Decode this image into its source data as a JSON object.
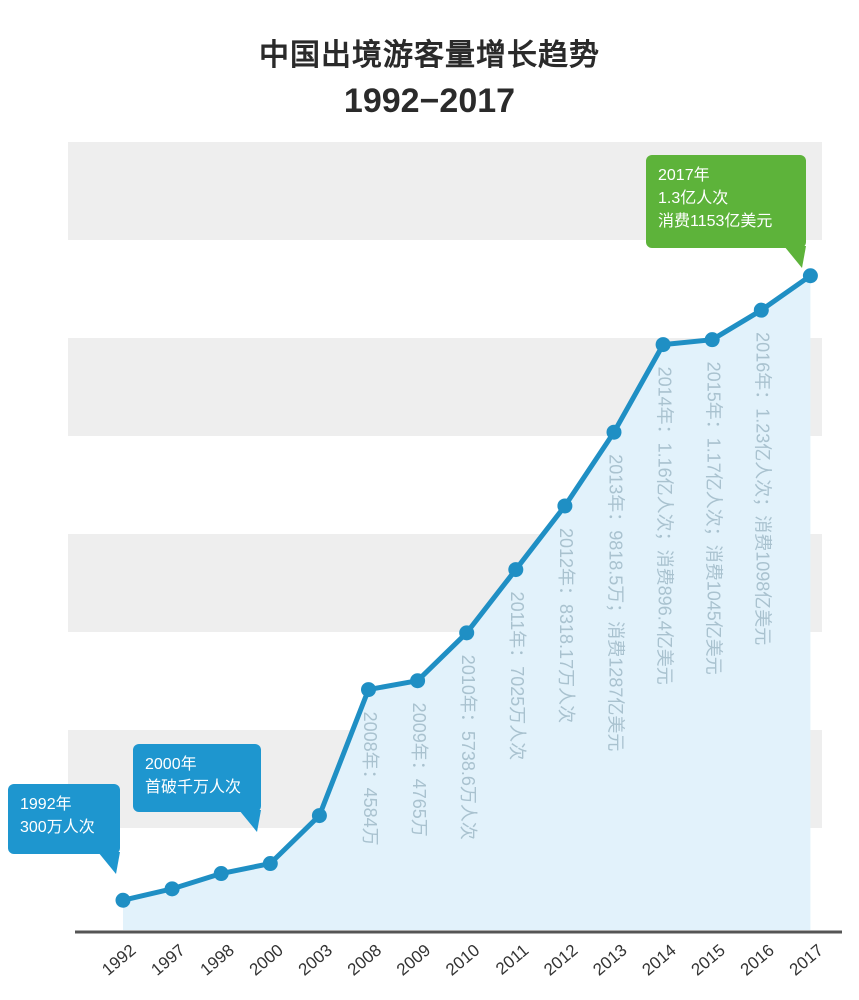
{
  "chart_data": {
    "type": "area",
    "title": "中国出境游客量增长趋势",
    "subtitle": "1992−2017",
    "categories": [
      "1992",
      "1997",
      "1998",
      "2000",
      "2003",
      "2008",
      "2009",
      "2010",
      "2011",
      "2012",
      "2013",
      "2014",
      "2015",
      "2016",
      "2017"
    ],
    "values": [
      300,
      532,
      843,
      1047,
      2022,
      4584,
      4765,
      5738.6,
      7025,
      8318.17,
      9818.5,
      11600,
      11700,
      12300,
      13000
    ],
    "value_unit": "万人次",
    "ylim": [
      0,
      14500
    ],
    "grid": "alternating-bands",
    "colors": {
      "line": "#1f8fc4",
      "fill": "#e2f2fb",
      "band": "#eeeeee",
      "axis": "#555555",
      "callout_blue": "#1e96cf",
      "callout_green": "#5db33a",
      "annotation": "#a9c2cf"
    },
    "annotations": [
      {
        "text": "2008年：4584万",
        "year": "2008"
      },
      {
        "text": "2009年：4765万",
        "year": "2009"
      },
      {
        "text": "2010年：5738.6万人次",
        "year": "2010"
      },
      {
        "text": "2011年：7025万人次",
        "year": "2011"
      },
      {
        "text": "2012年：8318.17万人次",
        "year": "2012"
      },
      {
        "text": "2013年：9818.5万；消费1287亿美元",
        "year": "2013"
      },
      {
        "text": "2014年：1.16亿人次；消费896.4亿美元",
        "year": "2014"
      },
      {
        "text": "2015年：1.17亿人次；消费1045亿美元",
        "year": "2015"
      },
      {
        "text": "2016年：1.23亿人次；消费1098亿美元",
        "year": "2016"
      }
    ],
    "callouts": [
      {
        "lines": [
          "1992年",
          "300万人次"
        ],
        "color": "callout_blue",
        "year": "1992"
      },
      {
        "lines": [
          "2000年",
          "首破千万人次"
        ],
        "color": "callout_blue",
        "year": "2000"
      },
      {
        "lines": [
          "2017年",
          "1.3亿人次",
          "消费1153亿美元"
        ],
        "color": "callout_green",
        "year": "2017"
      }
    ]
  }
}
